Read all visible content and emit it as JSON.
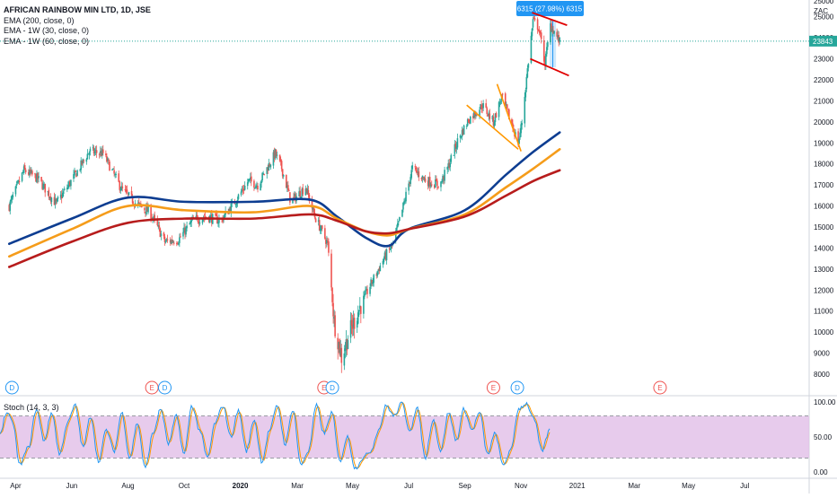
{
  "legend": {
    "title": "AFRICAN RAINBOW MIN LTD, 1D, JSE",
    "studies": [
      "EMA (200, close, 0)",
      "EMA - 1W (30, close, 0)",
      "EMA - 1W (60, close, 0)"
    ]
  },
  "stoch_label": "Stoch (14, 3, 3)",
  "colors": {
    "up": "#26a69a",
    "down": "#ef5350",
    "ema200": "#0d3d91",
    "ema30w": "#f59c1a",
    "ema60w": "#b71c1c",
    "stoch_k": "#2196f3",
    "stoch_d": "#ff9800",
    "stoch_band": "#e1bee7",
    "trend_orange": "#ff9800",
    "trend_red": "#e00000",
    "measure": "#2196f3",
    "price_tag": "#26a69a",
    "axis_text": "#131722"
  },
  "chart_data": {
    "type": "candlestick",
    "ylim": [
      7700,
      25800
    ],
    "y_ticks": [
      8000,
      9000,
      10000,
      11000,
      12000,
      13000,
      14000,
      15000,
      16000,
      17000,
      18000,
      19000,
      20000,
      21000,
      22000,
      23000,
      24000,
      25000
    ],
    "top_partial_tick": "25000",
    "currency": "ZAC",
    "last_price": "23843",
    "x_labels": [
      "Apr",
      "Jun",
      "Aug",
      "Oct",
      "2020",
      "Mar",
      "May",
      "Jul",
      "Sep",
      "Nov",
      "2021",
      "Mar",
      "May",
      "Jul"
    ],
    "x_label_bold": "2020",
    "date_range": [
      "2019-03-25",
      "2020-11-12"
    ],
    "ohlc_anchors": [
      [
        "2019-03-25",
        16000
      ],
      [
        "2019-04-10",
        17700
      ],
      [
        "2019-04-25",
        17300
      ],
      [
        "2019-05-15",
        16100
      ],
      [
        "2019-06-05",
        17500
      ],
      [
        "2019-06-20",
        18600
      ],
      [
        "2019-07-05",
        18500
      ],
      [
        "2019-07-25",
        16800
      ],
      [
        "2019-08-10",
        16100
      ],
      [
        "2019-08-25",
        15700
      ],
      [
        "2019-09-10",
        14300
      ],
      [
        "2019-09-25",
        14400
      ],
      [
        "2019-10-10",
        15300
      ],
      [
        "2019-10-25",
        15500
      ],
      [
        "2019-11-10",
        15300
      ],
      [
        "2019-11-25",
        16200
      ],
      [
        "2019-12-10",
        17200
      ],
      [
        "2019-12-20",
        17000
      ],
      [
        "2020-01-08",
        18500
      ],
      [
        "2020-01-15",
        17800
      ],
      [
        "2020-01-25",
        16200
      ],
      [
        "2020-02-10",
        16900
      ],
      [
        "2020-02-20",
        15500
      ],
      [
        "2020-03-05",
        14200
      ],
      [
        "2020-03-12",
        10500
      ],
      [
        "2020-03-20",
        8800
      ],
      [
        "2020-03-28",
        9900
      ],
      [
        "2020-04-10",
        11300
      ],
      [
        "2020-04-20",
        12200
      ],
      [
        "2020-05-05",
        13500
      ],
      [
        "2020-05-15",
        14200
      ],
      [
        "2020-05-25",
        15800
      ],
      [
        "2020-06-05",
        17800
      ],
      [
        "2020-06-20",
        17200
      ],
      [
        "2020-07-05",
        17000
      ],
      [
        "2020-07-15",
        18000
      ],
      [
        "2020-07-25",
        19200
      ],
      [
        "2020-08-05",
        20100
      ],
      [
        "2020-08-20",
        20800
      ],
      [
        "2020-09-01",
        20000
      ],
      [
        "2020-09-10",
        21200
      ],
      [
        "2020-09-20",
        20000
      ],
      [
        "2020-09-28",
        19000
      ],
      [
        "2020-10-02",
        20000
      ],
      [
        "2020-10-08",
        22500
      ],
      [
        "2020-10-14",
        24800
      ],
      [
        "2020-10-20",
        24500
      ],
      [
        "2020-10-27",
        22800
      ],
      [
        "2020-11-02",
        24600
      ],
      [
        "2020-11-06",
        24300
      ],
      [
        "2020-11-12",
        23800
      ]
    ],
    "series": [
      {
        "name": "EMA (200, close, 0)",
        "points": [
          [
            "2019-03-25",
            14200
          ],
          [
            "2019-06-01",
            15400
          ],
          [
            "2019-08-01",
            16400
          ],
          [
            "2019-10-01",
            16200
          ],
          [
            "2019-12-15",
            16200
          ],
          [
            "2020-02-15",
            16300
          ],
          [
            "2020-03-15",
            15500
          ],
          [
            "2020-04-15",
            14500
          ],
          [
            "2020-05-10",
            14100
          ],
          [
            "2020-06-01",
            14900
          ],
          [
            "2020-08-01",
            15800
          ],
          [
            "2020-09-15",
            17500
          ],
          [
            "2020-10-15",
            18600
          ],
          [
            "2020-11-12",
            19500
          ]
        ]
      },
      {
        "name": "EMA - 1W (30, close, 0)",
        "points": [
          [
            "2019-03-25",
            13600
          ],
          [
            "2019-06-01",
            14900
          ],
          [
            "2019-08-01",
            16000
          ],
          [
            "2019-10-01",
            15800
          ],
          [
            "2019-12-15",
            15700
          ],
          [
            "2020-02-15",
            16000
          ],
          [
            "2020-03-15",
            15400
          ],
          [
            "2020-04-15",
            14800
          ],
          [
            "2020-05-10",
            14600
          ],
          [
            "2020-06-01",
            14900
          ],
          [
            "2020-08-01",
            15600
          ],
          [
            "2020-09-15",
            16900
          ],
          [
            "2020-10-15",
            17800
          ],
          [
            "2020-11-12",
            18700
          ]
        ]
      },
      {
        "name": "EMA - 1W (60, close, 0)",
        "points": [
          [
            "2019-03-25",
            13100
          ],
          [
            "2019-06-01",
            14300
          ],
          [
            "2019-08-01",
            15200
          ],
          [
            "2019-10-01",
            15400
          ],
          [
            "2019-12-15",
            15400
          ],
          [
            "2020-02-15",
            15600
          ],
          [
            "2020-03-15",
            15300
          ],
          [
            "2020-04-15",
            14800
          ],
          [
            "2020-05-10",
            14700
          ],
          [
            "2020-06-01",
            14900
          ],
          [
            "2020-08-01",
            15500
          ],
          [
            "2020-09-15",
            16500
          ],
          [
            "2020-10-15",
            17200
          ],
          [
            "2020-11-12",
            17700
          ]
        ]
      }
    ],
    "trendlines": [
      {
        "color": "orange",
        "from": [
          "2020-08-03",
          20800
        ],
        "to": [
          "2020-09-28",
          18700
        ]
      },
      {
        "color": "orange",
        "from": [
          "2020-09-05",
          21800
        ],
        "to": [
          "2020-10-01",
          18600
        ]
      },
      {
        "color": "red",
        "from": [
          "2020-10-13",
          25200
        ],
        "to": [
          "2020-11-20",
          24600
        ]
      },
      {
        "color": "red",
        "from": [
          "2020-10-11",
          23000
        ],
        "to": [
          "2020-11-22",
          22200
        ]
      }
    ],
    "measure": {
      "label": "6315 (27.98%) 6315",
      "from": [
        "2020-11-01",
        22600
      ],
      "to": [
        "2020-11-08",
        25800
      ]
    },
    "events": [
      {
        "type": "D",
        "date": "2019-03-28"
      },
      {
        "type": "E",
        "date": "2019-08-27"
      },
      {
        "type": "D",
        "date": "2019-09-10"
      },
      {
        "type": "E",
        "date": "2020-03-01"
      },
      {
        "type": "D",
        "date": "2020-03-10"
      },
      {
        "type": "E",
        "date": "2020-09-01"
      },
      {
        "type": "D",
        "date": "2020-09-27"
      },
      {
        "type": "E",
        "date": "2021-03-01"
      }
    ],
    "stoch": {
      "ylim": [
        0,
        100
      ],
      "y_ticks": [
        "100.00",
        "50.00",
        "0.00"
      ],
      "band": [
        20,
        80
      ],
      "k_anchors": [
        [
          0,
          55
        ],
        [
          5,
          85
        ],
        [
          10,
          70
        ],
        [
          15,
          10
        ],
        [
          22,
          35
        ],
        [
          28,
          90
        ],
        [
          34,
          45
        ],
        [
          40,
          85
        ],
        [
          46,
          25
        ],
        [
          52,
          70
        ],
        [
          58,
          95
        ],
        [
          64,
          35
        ],
        [
          70,
          80
        ],
        [
          76,
          15
        ],
        [
          82,
          60
        ],
        [
          88,
          30
        ],
        [
          94,
          85
        ],
        [
          100,
          20
        ],
        [
          106,
          70
        ],
        [
          112,
          5
        ],
        [
          118,
          55
        ],
        [
          124,
          90
        ],
        [
          130,
          40
        ],
        [
          136,
          80
        ],
        [
          142,
          25
        ],
        [
          148,
          95
        ],
        [
          154,
          60
        ],
        [
          160,
          20
        ],
        [
          166,
          70
        ],
        [
          172,
          95
        ],
        [
          178,
          50
        ],
        [
          184,
          88
        ],
        [
          190,
          30
        ],
        [
          196,
          75
        ],
        [
          202,
          15
        ],
        [
          208,
          60
        ],
        [
          214,
          95
        ],
        [
          220,
          40
        ],
        [
          226,
          90
        ],
        [
          232,
          10
        ],
        [
          238,
          30
        ],
        [
          244,
          95
        ],
        [
          250,
          55
        ],
        [
          256,
          85
        ],
        [
          262,
          15
        ],
        [
          268,
          50
        ],
        [
          274,
          5
        ],
        [
          280,
          20
        ],
        [
          286,
          30
        ],
        [
          292,
          60
        ],
        [
          298,
          95
        ],
        [
          304,
          80
        ],
        [
          310,
          98
        ],
        [
          316,
          60
        ],
        [
          322,
          90
        ],
        [
          328,
          20
        ],
        [
          334,
          75
        ],
        [
          340,
          30
        ],
        [
          346,
          85
        ],
        [
          352,
          45
        ],
        [
          358,
          90
        ],
        [
          364,
          60
        ],
        [
          370,
          85
        ],
        [
          376,
          25
        ],
        [
          382,
          55
        ],
        [
          388,
          10
        ],
        [
          394,
          30
        ],
        [
          400,
          90
        ],
        [
          406,
          98
        ],
        [
          412,
          75
        ],
        [
          418,
          30
        ],
        [
          424,
          60
        ]
      ]
    }
  }
}
